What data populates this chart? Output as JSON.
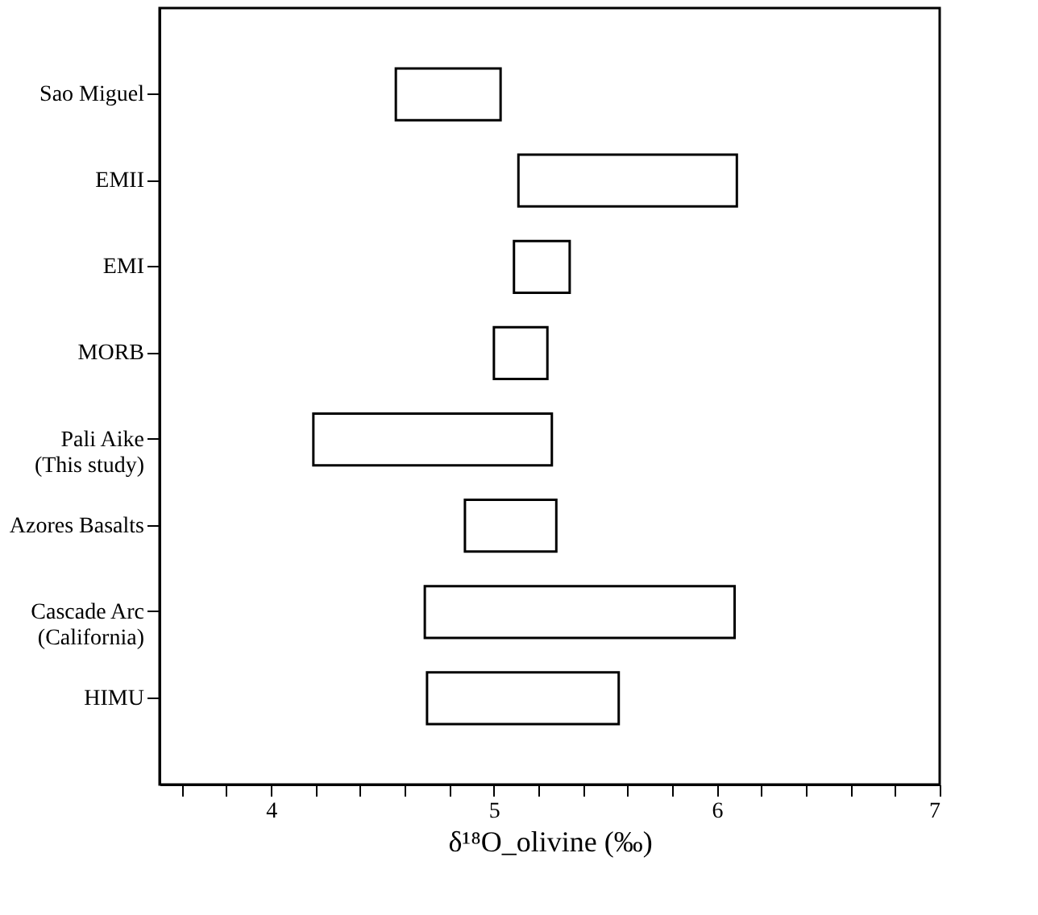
{
  "chart_data": {
    "type": "bar",
    "orientation": "horizontal",
    "xlabel": "δ¹⁸O_olivine (‰)",
    "categories": [
      "Sao Miguel",
      "EMII",
      "EMI",
      "MORB",
      "Pali Aike\n(This study)",
      "Azores Basalts",
      "Cascade Arc\n(California)",
      "HIMU"
    ],
    "base": [
      4.56,
      5.11,
      5.09,
      5.0,
      4.19,
      4.87,
      4.69,
      4.7
    ],
    "values": [
      0.47,
      0.98,
      0.25,
      0.24,
      1.07,
      0.41,
      1.39,
      0.86
    ],
    "color": "#ffffff",
    "xlim": [
      3.5,
      7
    ],
    "xticks": [
      {
        "value": 3.6,
        "label": null
      },
      {
        "value": 3.8,
        "label": null
      },
      4,
      {
        "value": 4.2,
        "label": null
      },
      {
        "value": 4.4,
        "label": null
      },
      {
        "value": 4.6,
        "label": null
      },
      {
        "value": 4.8,
        "label": null
      },
      5,
      {
        "value": 5.2,
        "label": null
      },
      {
        "value": 5.4,
        "label": null
      },
      {
        "value": 5.6,
        "label": null
      },
      {
        "value": 5.8,
        "label": null
      },
      6,
      {
        "value": 6.2,
        "label": null
      },
      {
        "value": 6.4,
        "label": null
      },
      {
        "value": 6.6,
        "label": null
      },
      {
        "value": 6.8,
        "label": null
      },
      7
    ],
    "grid": false
  }
}
